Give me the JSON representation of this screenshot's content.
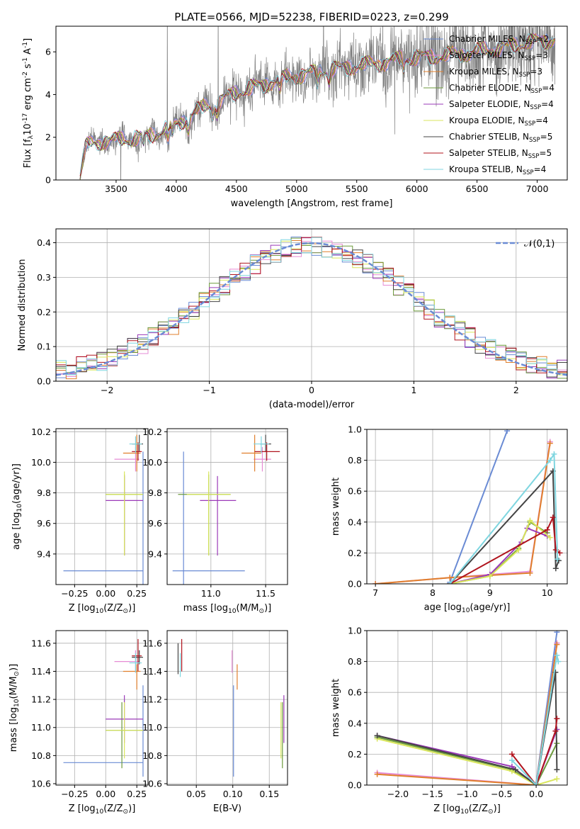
{
  "figure": {
    "title": "PLATE=0566, MJD=52238, FIBERID=0223, z=0.299"
  },
  "colors": {
    "chabrier_miles": "#6a8bd4",
    "salpeter_miles": "#e68bd4",
    "kroupa_miles": "#e07f2c",
    "chabrier_elodie": "#6c9a3c",
    "salpeter_elodie": "#9b3ab8",
    "kroupa_elodie": "#d9e65c",
    "chabrier_stelib": "#444444",
    "salpeter_stelib": "#b0141e",
    "kroupa_stelib": "#7fd6e0",
    "data": "#808080",
    "gauss": "#6a8bd4",
    "grid": "#b0b0b0"
  },
  "chart_data": [
    {
      "id": "spectrum",
      "type": "line",
      "xlabel": "wavelength [Angstrom, rest frame]",
      "ylabel": "Flux [f$_\\lambda$10$^{-17}$ erg cm$^{-2}$ s$^{-1}$ A$^{-1}$]",
      "xlim": [
        3000,
        7250
      ],
      "ylim": [
        0,
        7.2
      ],
      "xticks": [
        3500,
        4000,
        4500,
        5000,
        5500,
        6000,
        6500,
        7000
      ],
      "yticks": [
        0,
        2,
        4,
        6
      ],
      "grid": false,
      "legend": "top-right",
      "continuum": {
        "x": [
          3200,
          3250,
          3400,
          3600,
          3800,
          4000,
          4200,
          4500,
          4800,
          5000,
          5300,
          5600,
          5900,
          6200,
          6500,
          6800,
          7000,
          7150
        ],
        "y": [
          0.1,
          1.6,
          1.85,
          1.9,
          2.1,
          2.6,
          3.3,
          4.1,
          4.6,
          4.9,
          5.2,
          5.4,
          5.7,
          5.8,
          6.0,
          6.3,
          6.5,
          6.6
        ]
      },
      "series": [
        {
          "name": "Chabrier MILES, N$_{SSP}$=2",
          "color_key": "chabrier_miles"
        },
        {
          "name": "Salpeter MILES, N$_{SSP}$=3",
          "color_key": "salpeter_miles"
        },
        {
          "name": "Kroupa MILES, N$_{SSP}$=3",
          "color_key": "kroupa_miles"
        },
        {
          "name": "Chabrier ELODIE, N$_{SSP}$=4",
          "color_key": "chabrier_elodie"
        },
        {
          "name": "Salpeter ELODIE, N$_{SSP}$=4",
          "color_key": "salpeter_elodie"
        },
        {
          "name": "Kroupa ELODIE, N$_{SSP}$=4",
          "color_key": "kroupa_elodie"
        },
        {
          "name": "Chabrier STELIB, N$_{SSP}$=5",
          "color_key": "chabrier_stelib"
        },
        {
          "name": "Salpeter STELIB, N$_{SSP}$=5",
          "color_key": "salpeter_stelib"
        },
        {
          "name": "Kroupa STELIB, N$_{SSP}$=4",
          "color_key": "kroupa_stelib"
        }
      ]
    },
    {
      "id": "residuals",
      "type": "line",
      "xlabel": "(data-model)/error",
      "ylabel": "Normed distribution",
      "xlim": [
        -2.5,
        2.5
      ],
      "ylim": [
        0,
        0.44
      ],
      "xticks": [
        -2,
        -1,
        0,
        1,
        2
      ],
      "yticks": [
        0.0,
        0.1,
        0.2,
        0.3,
        0.4
      ],
      "grid": true,
      "legend": "top-right",
      "gauss_label": "$\\mathcal{N}$(0,1)",
      "bin_width": 0.1
    },
    {
      "id": "age_vs_Z",
      "type": "scatter",
      "xlabel": "Z [log$_{10}$(Z/Z$_\\odot$)]",
      "ylabel": "age  [log$_{10}$(age/yr)]",
      "xlim": [
        -0.4,
        0.34
      ],
      "ylim": [
        9.2,
        10.22
      ],
      "xticks": [
        -0.25,
        0.0,
        0.25
      ],
      "yticks": [
        9.4,
        9.6,
        9.8,
        10.0,
        10.2
      ],
      "grid": true,
      "points": [
        {
          "key": "chabrier_miles",
          "x": 0.3,
          "y": 9.29,
          "xerr": [
            0.64,
            0.0
          ],
          "yerr": [
            0.1,
            0.78
          ]
        },
        {
          "key": "salpeter_miles",
          "x": 0.24,
          "y": 10.02,
          "xerr": [
            0.17,
            0.03
          ],
          "yerr": [
            0.08,
            0.08
          ]
        },
        {
          "key": "kroupa_miles",
          "x": 0.25,
          "y": 10.06,
          "xerr": [
            0.11,
            0.03
          ],
          "yerr": [
            0.12,
            0.12
          ]
        },
        {
          "key": "chabrier_elodie",
          "x": 0.15,
          "y": 9.79,
          "xerr": [
            0.15,
            0.15
          ],
          "yerr": [
            0.4,
            0.13
          ]
        },
        {
          "key": "salpeter_elodie",
          "x": 0.15,
          "y": 9.75,
          "xerr": [
            0.15,
            0.15
          ],
          "yerr": [
            0.36,
            0.16
          ]
        },
        {
          "key": "kroupa_elodie",
          "x": 0.15,
          "y": 9.79,
          "xerr": [
            0.15,
            0.15
          ],
          "yerr": [
            0.4,
            0.15
          ]
        },
        {
          "key": "chabrier_stelib",
          "x": 0.27,
          "y": 10.12,
          "xerr": [
            0.06,
            0.03
          ],
          "yerr": [
            0.05,
            0.06
          ]
        },
        {
          "key": "salpeter_stelib",
          "x": 0.26,
          "y": 10.07,
          "xerr": [
            0.05,
            0.03
          ],
          "yerr": [
            0.06,
            0.06
          ]
        },
        {
          "key": "kroupa_stelib",
          "x": 0.24,
          "y": 10.12,
          "xerr": [
            0.05,
            0.05
          ],
          "yerr": [
            0.06,
            0.05
          ]
        }
      ]
    },
    {
      "id": "age_vs_mass",
      "type": "scatter",
      "xlabel": "mass [log$_{10}$(M/M$_\\odot$)]",
      "ylabel": "",
      "xlim": [
        10.6,
        11.7
      ],
      "ylim": [
        9.2,
        10.22
      ],
      "xticks": [
        11.0,
        11.5
      ],
      "yticks": [
        9.4,
        9.6,
        9.8,
        10.0,
        10.2
      ],
      "grid": true,
      "points": [
        {
          "key": "chabrier_miles",
          "x": 10.75,
          "y": 9.29,
          "xerr": [
            0.1,
            0.56
          ],
          "yerr": [
            0.1,
            0.78
          ]
        },
        {
          "key": "salpeter_miles",
          "x": 11.47,
          "y": 10.02,
          "xerr": [
            0.08,
            0.08
          ],
          "yerr": [
            0.08,
            0.08
          ]
        },
        {
          "key": "kroupa_miles",
          "x": 11.4,
          "y": 10.06,
          "xerr": [
            0.12,
            0.06
          ],
          "yerr": [
            0.12,
            0.12
          ]
        },
        {
          "key": "chabrier_elodie",
          "x": 10.98,
          "y": 9.79,
          "xerr": [
            0.28,
            0.2
          ],
          "yerr": [
            0.4,
            0.13
          ]
        },
        {
          "key": "salpeter_elodie",
          "x": 11.06,
          "y": 9.75,
          "xerr": [
            0.16,
            0.17
          ],
          "yerr": [
            0.36,
            0.16
          ]
        },
        {
          "key": "kroupa_elodie",
          "x": 10.98,
          "y": 9.79,
          "xerr": [
            0.2,
            0.2
          ],
          "yerr": [
            0.4,
            0.15
          ]
        },
        {
          "key": "chabrier_stelib",
          "x": 11.5,
          "y": 10.12,
          "xerr": [
            0.05,
            0.05
          ],
          "yerr": [
            0.05,
            0.06
          ]
        },
        {
          "key": "salpeter_stelib",
          "x": 11.51,
          "y": 10.07,
          "xerr": [
            0.11,
            0.12
          ],
          "yerr": [
            0.06,
            0.06
          ]
        },
        {
          "key": "kroupa_stelib",
          "x": 11.46,
          "y": 10.12,
          "xerr": [
            0.07,
            0.07
          ],
          "yerr": [
            0.06,
            0.05
          ]
        }
      ]
    },
    {
      "id": "weight_vs_age",
      "type": "line",
      "xlabel": "age  [log$_{10}$(age/yr)]",
      "ylabel": "mass weight",
      "xlim": [
        6.85,
        10.35
      ],
      "ylim": [
        0,
        1
      ],
      "xticks": [
        7,
        8,
        9,
        10
      ],
      "yticks": [
        0.0,
        0.2,
        0.4,
        0.6,
        0.8,
        1.0
      ],
      "grid": true,
      "series": [
        {
          "key": "chabrier_miles",
          "x": [
            8.3,
            9.3
          ],
          "y": [
            0.01,
            0.99
          ]
        },
        {
          "key": "salpeter_miles",
          "x": [
            7.0,
            8.3,
            9.7,
            10.05
          ],
          "y": [
            0.0,
            0.04,
            0.08,
            0.92
          ]
        },
        {
          "key": "kroupa_miles",
          "x": [
            7.0,
            8.3,
            9.7,
            10.05
          ],
          "y": [
            0.0,
            0.04,
            0.07,
            0.91
          ]
        },
        {
          "key": "chabrier_elodie",
          "x": [
            8.3,
            9.0,
            9.5,
            9.7,
            10.0
          ],
          "y": [
            0.0,
            0.05,
            0.23,
            0.4,
            0.33
          ]
        },
        {
          "key": "salpeter_elodie",
          "x": [
            8.3,
            9.0,
            9.55,
            9.65,
            10.0
          ],
          "y": [
            0.0,
            0.06,
            0.27,
            0.36,
            0.31
          ]
        },
        {
          "key": "kroupa_elodie",
          "x": [
            8.3,
            9.0,
            9.5,
            9.7,
            10.05
          ],
          "y": [
            0.0,
            0.05,
            0.22,
            0.41,
            0.3
          ]
        },
        {
          "key": "chabrier_stelib",
          "x": [
            8.3,
            10.1,
            10.15,
            10.2
          ],
          "y": [
            0.0,
            0.73,
            0.1,
            0.15
          ]
        },
        {
          "key": "salpeter_stelib",
          "x": [
            8.3,
            10.0,
            10.1,
            10.15,
            10.22
          ],
          "y": [
            0.0,
            0.35,
            0.43,
            0.22,
            0.2
          ]
        },
        {
          "key": "kroupa_stelib",
          "x": [
            8.3,
            10.05,
            10.12,
            10.18
          ],
          "y": [
            0.0,
            0.8,
            0.84,
            0.16
          ]
        }
      ]
    },
    {
      "id": "mass_vs_Z",
      "type": "scatter",
      "xlabel": "Z [log$_{10}$(Z/Z$_\\odot$)]",
      "ylabel": "mass [log$_{10}$(M/M$_\\odot$)]",
      "xlim": [
        -0.4,
        0.34
      ],
      "ylim": [
        10.59,
        11.69
      ],
      "xticks": [
        -0.25,
        0.0,
        0.25
      ],
      "yticks": [
        10.6,
        10.8,
        11.0,
        11.2,
        11.4,
        11.6
      ],
      "grid": true,
      "points": [
        {
          "key": "chabrier_miles",
          "x": 0.3,
          "y": 10.75,
          "xerr": [
            0.64,
            0.0
          ],
          "yerr": [
            0.1,
            0.55
          ]
        },
        {
          "key": "salpeter_miles",
          "x": 0.24,
          "y": 11.47,
          "xerr": [
            0.17,
            0.03
          ],
          "yerr": [
            0.08,
            0.08
          ]
        },
        {
          "key": "kroupa_miles",
          "x": 0.25,
          "y": 11.4,
          "xerr": [
            0.11,
            0.03
          ],
          "yerr": [
            0.13,
            0.05
          ]
        },
        {
          "key": "chabrier_elodie",
          "x": 0.13,
          "y": 10.98,
          "xerr": [
            0.13,
            0.17
          ],
          "yerr": [
            0.27,
            0.2
          ]
        },
        {
          "key": "salpeter_elodie",
          "x": 0.15,
          "y": 11.06,
          "xerr": [
            0.15,
            0.15
          ],
          "yerr": [
            0.17,
            0.17
          ]
        },
        {
          "key": "kroupa_elodie",
          "x": 0.15,
          "y": 10.98,
          "xerr": [
            0.15,
            0.15
          ],
          "yerr": [
            0.2,
            0.2
          ]
        },
        {
          "key": "chabrier_stelib",
          "x": 0.27,
          "y": 11.5,
          "xerr": [
            0.06,
            0.03
          ],
          "yerr": [
            0.05,
            0.05
          ]
        },
        {
          "key": "salpeter_stelib",
          "x": 0.26,
          "y": 11.51,
          "xerr": [
            0.05,
            0.03
          ],
          "yerr": [
            0.11,
            0.12
          ]
        },
        {
          "key": "kroupa_stelib",
          "x": 0.24,
          "y": 11.46,
          "xerr": [
            0.05,
            0.05
          ],
          "yerr": [
            0.07,
            0.07
          ]
        }
      ]
    },
    {
      "id": "mass_vs_ebv",
      "type": "scatter",
      "xlabel": "E(B-V)",
      "ylabel": "",
      "xlim": [
        0.01,
        0.175
      ],
      "ylim": [
        10.59,
        11.69
      ],
      "xticks": [
        0.05,
        0.1,
        0.15
      ],
      "yticks": [
        10.6,
        10.8,
        11.0,
        11.2,
        11.4,
        11.6
      ],
      "grid": true,
      "points": [
        {
          "key": "chabrier_miles",
          "x": 0.101,
          "y": 10.75,
          "xerr": [
            0,
            0
          ],
          "yerr": [
            0.1,
            0.55
          ]
        },
        {
          "key": "salpeter_miles",
          "x": 0.099,
          "y": 11.47,
          "xerr": [
            0,
            0
          ],
          "yerr": [
            0.08,
            0.08
          ]
        },
        {
          "key": "kroupa_miles",
          "x": 0.106,
          "y": 11.4,
          "xerr": [
            0,
            0
          ],
          "yerr": [
            0.13,
            0.05
          ]
        },
        {
          "key": "chabrier_elodie",
          "x": 0.168,
          "y": 10.98,
          "xerr": [
            0,
            0
          ],
          "yerr": [
            0.27,
            0.2
          ]
        },
        {
          "key": "salpeter_elodie",
          "x": 0.17,
          "y": 11.06,
          "xerr": [
            0,
            0
          ],
          "yerr": [
            0.17,
            0.17
          ]
        },
        {
          "key": "kroupa_elodie",
          "x": 0.166,
          "y": 10.98,
          "xerr": [
            0,
            0
          ],
          "yerr": [
            0.2,
            0.2
          ]
        },
        {
          "key": "chabrier_stelib",
          "x": 0.025,
          "y": 11.5,
          "xerr": [
            0,
            0
          ],
          "yerr": [
            0.12,
            0.1
          ]
        },
        {
          "key": "salpeter_stelib",
          "x": 0.03,
          "y": 11.51,
          "xerr": [
            0,
            0
          ],
          "yerr": [
            0.11,
            0.12
          ]
        },
        {
          "key": "kroupa_stelib",
          "x": 0.028,
          "y": 11.46,
          "xerr": [
            0,
            0
          ],
          "yerr": [
            0.1,
            0.07
          ]
        }
      ]
    },
    {
      "id": "weight_vs_Z",
      "type": "line",
      "xlabel": "Z [log$_{10}$(Z/Z$_\\odot$)]",
      "ylabel": "mass weight",
      "xlim": [
        -2.45,
        0.45
      ],
      "ylim": [
        0,
        1
      ],
      "xticks": [
        -2.0,
        -1.5,
        -1.0,
        -0.5,
        0.0
      ],
      "yticks": [
        0.0,
        0.2,
        0.4,
        0.6,
        0.8,
        1.0
      ],
      "grid": true,
      "series": [
        {
          "key": "chabrier_miles",
          "x": [
            0.0,
            0.3
          ],
          "y": [
            0.01,
            0.99
          ]
        },
        {
          "key": "salpeter_miles",
          "x": [
            -2.3,
            0.0,
            0.3
          ],
          "y": [
            0.08,
            0.0,
            0.92
          ]
        },
        {
          "key": "kroupa_miles",
          "x": [
            -2.3,
            0.0,
            0.3
          ],
          "y": [
            0.07,
            0.0,
            0.91
          ]
        },
        {
          "key": "chabrier_elodie",
          "x": [
            -2.3,
            -0.35,
            0.0,
            0.3
          ],
          "y": [
            0.31,
            0.1,
            0.0,
            0.27
          ]
        },
        {
          "key": "salpeter_elodie",
          "x": [
            -2.3,
            -0.35,
            0.0,
            0.3
          ],
          "y": [
            0.32,
            0.12,
            0.0,
            0.36
          ]
        },
        {
          "key": "kroupa_elodie",
          "x": [
            -2.3,
            -0.35,
            0.0,
            0.3
          ],
          "y": [
            0.3,
            0.09,
            0.0,
            0.04
          ]
        },
        {
          "key": "chabrier_stelib",
          "x": [
            -2.3,
            -0.3,
            0.0,
            0.28,
            0.3
          ],
          "y": [
            0.32,
            0.1,
            0.0,
            0.73,
            0.1
          ]
        },
        {
          "key": "salpeter_stelib",
          "x": [
            -0.35,
            0.0,
            0.28,
            0.3
          ],
          "y": [
            0.2,
            0.0,
            0.35,
            0.43
          ]
        },
        {
          "key": "kroupa_stelib",
          "x": [
            -0.35,
            0.0,
            0.3,
            0.32
          ],
          "y": [
            0.16,
            0.0,
            0.84,
            0.8
          ]
        }
      ]
    }
  ]
}
